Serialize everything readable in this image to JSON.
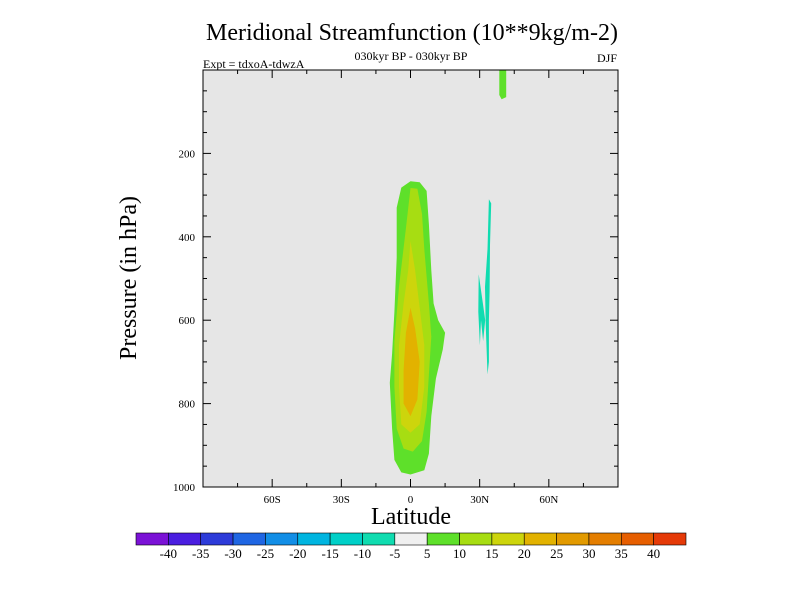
{
  "chart_data": {
    "type": "heatmap",
    "title": "Meridional Streamfunction (10**9kg/m-2)",
    "subtitle_left": "Expt = tdxoA-tdwzA",
    "subtitle_center": "030kyr BP - 030kyr BP",
    "subtitle_right": "DJF",
    "xlabel": "Latitude",
    "ylabel": "Pressure (in hPa)",
    "xlim": [
      -90,
      90
    ],
    "ylim": [
      0,
      1000
    ],
    "y_reversed": true,
    "x_ticks": [
      {
        "value": -60,
        "label": "60S"
      },
      {
        "value": -30,
        "label": "30S"
      },
      {
        "value": 0,
        "label": "0"
      },
      {
        "value": 30,
        "label": "30N"
      },
      {
        "value": 60,
        "label": "60N"
      }
    ],
    "y_ticks": [
      {
        "value": 200,
        "label": "200"
      },
      {
        "value": 400,
        "label": "400"
      },
      {
        "value": 600,
        "label": "600"
      },
      {
        "value": 800,
        "label": "800"
      },
      {
        "value": 1000,
        "label": "1000"
      }
    ],
    "background_color": "#e6e6e6",
    "colorbar": {
      "colors": [
        "#7b12d6",
        "#4a1ee0",
        "#2d3bd9",
        "#1f66e3",
        "#128ee6",
        "#00b5e0",
        "#00d0c8",
        "#10dcb0",
        "#f0f0f0",
        "#5ee02a",
        "#a7dd12",
        "#cdd50c",
        "#e2b200",
        "#e29a00",
        "#e47e00",
        "#e65e00",
        "#e53a08"
      ],
      "labels": [
        "-40",
        "-35",
        "-30",
        "-25",
        "-20",
        "-15",
        "-10",
        "-5",
        "5",
        "10",
        "15",
        "20",
        "25",
        "30",
        "35",
        "40"
      ]
    },
    "regions": [
      {
        "level": 10,
        "color": "#5ee02a",
        "points": [
          [
            38.5,
            0
          ],
          [
            41.5,
            0
          ],
          [
            41.5,
            65
          ],
          [
            39.5,
            70
          ],
          [
            38.5,
            60
          ]
        ]
      },
      {
        "level": 10,
        "color": "#5ee02a",
        "points": [
          [
            0,
            267
          ],
          [
            4,
            269
          ],
          [
            7,
            290
          ],
          [
            8,
            370
          ],
          [
            9,
            480
          ],
          [
            10,
            560
          ],
          [
            12,
            600
          ],
          [
            15,
            630
          ],
          [
            14,
            670
          ],
          [
            11,
            740
          ],
          [
            9,
            830
          ],
          [
            8,
            920
          ],
          [
            6,
            960
          ],
          [
            0,
            970
          ],
          [
            -4,
            965
          ],
          [
            -7,
            935
          ],
          [
            -8,
            860
          ],
          [
            -9,
            750
          ],
          [
            -8,
            680
          ],
          [
            -7,
            580
          ],
          [
            -6,
            450
          ],
          [
            -6,
            330
          ],
          [
            -4,
            282
          ]
        ]
      },
      {
        "level": 15,
        "color": "#a7dd12",
        "points": [
          [
            0,
            283
          ],
          [
            3,
            285
          ],
          [
            5,
            345
          ],
          [
            6,
            430
          ],
          [
            8,
            560
          ],
          [
            9,
            640
          ],
          [
            8,
            730
          ],
          [
            7,
            820
          ],
          [
            5,
            890
          ],
          [
            1,
            915
          ],
          [
            -3,
            908
          ],
          [
            -6,
            860
          ],
          [
            -7,
            760
          ],
          [
            -7,
            650
          ],
          [
            -5,
            520
          ],
          [
            -2,
            380
          ]
        ]
      },
      {
        "level": 20,
        "color": "#cdd50c",
        "points": [
          [
            0,
            410
          ],
          [
            2,
            480
          ],
          [
            4,
            570
          ],
          [
            6,
            660
          ],
          [
            6,
            760
          ],
          [
            4,
            850
          ],
          [
            0,
            870
          ],
          [
            -4,
            850
          ],
          [
            -5,
            760
          ],
          [
            -5,
            660
          ],
          [
            -3,
            560
          ],
          [
            -1,
            480
          ]
        ]
      },
      {
        "level": 25,
        "color": "#e2b200",
        "points": [
          [
            0,
            570
          ],
          [
            2,
            620
          ],
          [
            4,
            700
          ],
          [
            3,
            790
          ],
          [
            0,
            830
          ],
          [
            -3,
            800
          ],
          [
            -3,
            720
          ],
          [
            -2,
            630
          ]
        ]
      },
      {
        "level": -5,
        "color": "#10dcb0",
        "points": [
          [
            34,
            310
          ],
          [
            35,
            320
          ],
          [
            34.5,
            420
          ],
          [
            34.3,
            530
          ],
          [
            34,
            600
          ],
          [
            34,
            700
          ],
          [
            33.4,
            730
          ],
          [
            32.6,
            610
          ],
          [
            32.3,
            520
          ],
          [
            33.4,
            430
          ]
        ]
      },
      {
        "level": -5,
        "color": "#10dcb0",
        "points": [
          [
            29.6,
            490
          ],
          [
            31.4,
            560
          ],
          [
            32.4,
            600
          ],
          [
            31.5,
            650
          ],
          [
            30.6,
            600
          ],
          [
            30.1,
            660
          ],
          [
            29.4,
            580
          ]
        ]
      }
    ]
  }
}
